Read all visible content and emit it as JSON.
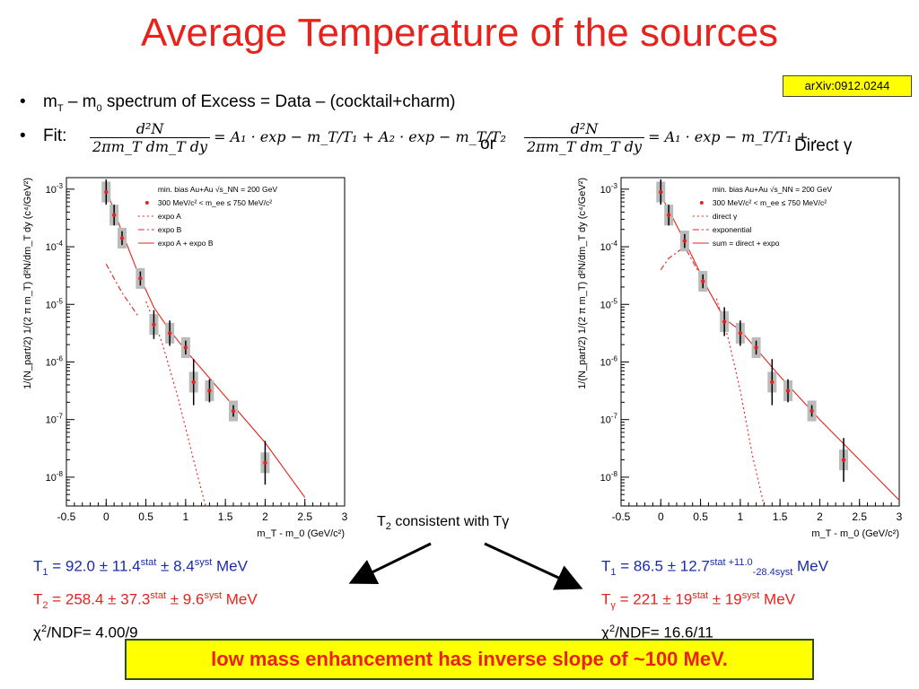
{
  "slide": {
    "title": "Average Temperature of the sources",
    "reference": "arXiv:0912.0244",
    "bullet1": {
      "marker": "•",
      "parts": [
        "m",
        "T",
        " – m",
        "0",
        " spectrum of Excess = Data – (cocktail+charm)"
      ]
    },
    "bullet2": {
      "marker": "•",
      "label": "Fit:"
    },
    "or_label": "or",
    "direct_label": "Direct γ",
    "consistency_note": {
      "parts": [
        "T",
        "2",
        " consistent with Tγ"
      ]
    },
    "conclusion": "low mass enhancement has inverse slope of ~100 MeV."
  },
  "equations": {
    "left": {
      "lhs_num": "d²N",
      "lhs_den": "2πm_T dm_T dy",
      "rhs": "= A₁ · exp − m_T/T₁ + A₂ · exp − m_T/T₂"
    },
    "right": {
      "lhs_num": "d²N",
      "lhs_den": "2πm_T dm_T dy",
      "rhs": "= A₁ · exp − m_T/T₁ + ."
    }
  },
  "results": {
    "left": {
      "t1": {
        "sym": "T",
        "sub": "1",
        "text": " = 92.0   ± 11.4",
        "sup1": "stat",
        "mid": " ± 8.4",
        "sup2": "syst",
        "unit": " MeV"
      },
      "t2": {
        "sym": "T",
        "sub": "2",
        "text": " = 258.4 ± 37.3",
        "sup1": "stat",
        "mid": " ± 9.6",
        "sup2": "syst",
        "unit": " MeV"
      },
      "chi2": {
        "sym": "χ",
        "sup": "2",
        "text": "/NDF= 4.00/9"
      }
    },
    "right": {
      "t1": {
        "sym": "T",
        "sub": "1",
        "text": " = 86.5 ± 12.7",
        "sup1": "stat",
        "sup_plus": " +11.0",
        "sub_minus": "-28.4syst",
        "unit": " MeV"
      },
      "tg": {
        "sym": "T",
        "sub": "γ",
        "text": " = 221 ± 19",
        "sup1": "stat",
        "mid": " ± 19",
        "sup2": "syst",
        "unit": " MeV"
      },
      "chi2": {
        "sym": "χ",
        "sup": "2",
        "text": "/NDF= 16.6/11"
      }
    }
  },
  "colors": {
    "title": "#e8211b",
    "highlight": "#ffff00",
    "blue_text": "#1a2ba8",
    "data_red": "#e8211b"
  },
  "chart_data": [
    {
      "type": "scatter",
      "ylabel": "1/(N_part/2) 1/(2 π m_T) d²N/dm_T dy (c⁴/GeV²)",
      "xlabel": "m_T - m_0 (GeV/c²)",
      "xlim": [
        -0.5,
        3
      ],
      "ylim_log10": [
        -8.5,
        -2.8
      ],
      "x_ticks": [
        "-0.5",
        "0",
        "0.5",
        "1",
        "1.5",
        "2",
        "2.5",
        "3"
      ],
      "y_ticks": [
        {
          "value": -3,
          "base": "10",
          "exp": "-3"
        },
        {
          "value": -4,
          "base": "10",
          "exp": "-4"
        },
        {
          "value": -5,
          "base": "10",
          "exp": "-5"
        },
        {
          "value": -6,
          "base": "10",
          "exp": "-6"
        },
        {
          "value": -7,
          "base": "10",
          "exp": "-7"
        },
        {
          "value": -8,
          "base": "10",
          "exp": "-8"
        }
      ],
      "legend": [
        {
          "label": "min. bias Au+Au √s_NN = 200 GeV",
          "style": "none"
        },
        {
          "label": "300 MeV/c² < m_ee ≤ 750 MeV/c²",
          "style": "dot"
        },
        {
          "label": "expo A",
          "style": "dotted"
        },
        {
          "label": "expo B",
          "style": "dashdot"
        },
        {
          "label": "expo A + expo B",
          "style": "solid"
        }
      ],
      "points": [
        {
          "x": 0.0,
          "log10y": -3.05,
          "err": 0.22
        },
        {
          "x": 0.1,
          "log10y": -3.45,
          "err": 0.18
        },
        {
          "x": 0.2,
          "log10y": -3.85,
          "err": 0.12
        },
        {
          "x": 0.43,
          "log10y": -4.55,
          "err": 0.12
        },
        {
          "x": 0.6,
          "log10y": -5.35,
          "err": 0.25
        },
        {
          "x": 0.8,
          "log10y": -5.5,
          "err": 0.22
        },
        {
          "x": 1.0,
          "log10y": -5.75,
          "err": 0.12
        },
        {
          "x": 1.1,
          "log10y": -6.35,
          "err": 0.4
        },
        {
          "x": 1.3,
          "log10y": -6.5,
          "err": 0.2
        },
        {
          "x": 1.6,
          "log10y": -6.85,
          "err": 0.1
        },
        {
          "x": 2.0,
          "log10y": -7.75,
          "err": 0.38
        }
      ],
      "curves": {
        "sum": [
          [
            0,
            -3.0
          ],
          [
            0.2,
            -3.75
          ],
          [
            0.4,
            -4.45
          ],
          [
            0.6,
            -5.05
          ],
          [
            0.8,
            -5.45
          ],
          [
            1.0,
            -5.8
          ],
          [
            1.5,
            -6.6
          ],
          [
            2.0,
            -7.4
          ],
          [
            2.5,
            -8.35
          ]
        ],
        "expoA": [
          [
            0.5,
            -4.95
          ],
          [
            0.7,
            -5.65
          ],
          [
            0.9,
            -6.6
          ],
          [
            1.1,
            -7.7
          ],
          [
            1.25,
            -8.5
          ]
        ],
        "expoB": [
          [
            0.0,
            -4.3
          ],
          [
            0.2,
            -4.8
          ],
          [
            0.4,
            -5.2
          ]
        ]
      }
    },
    {
      "type": "scatter",
      "ylabel": "1/(N_part/2) 1/(2 π m_T) d²N/dm_T dy (c⁴/GeV²)",
      "xlabel": "m_T - m_0 (GeV/c²)",
      "xlim": [
        -0.5,
        3
      ],
      "ylim_log10": [
        -8.5,
        -2.8
      ],
      "x_ticks": [
        "-0.5",
        "0",
        "0.5",
        "1",
        "1.5",
        "2",
        "2.5",
        "3"
      ],
      "y_ticks": [
        {
          "value": -3,
          "base": "10",
          "exp": "-3"
        },
        {
          "value": -4,
          "base": "10",
          "exp": "-4"
        },
        {
          "value": -5,
          "base": "10",
          "exp": "-5"
        },
        {
          "value": -6,
          "base": "10",
          "exp": "-6"
        },
        {
          "value": -7,
          "base": "10",
          "exp": "-7"
        },
        {
          "value": -8,
          "base": "10",
          "exp": "-8"
        }
      ],
      "legend": [
        {
          "label": "min. bias Au+Au √s_NN = 200 GeV",
          "style": "none"
        },
        {
          "label": "300 MeV/c² < m_ee ≤ 750 MeV/c²",
          "style": "dot"
        },
        {
          "label": "direct γ",
          "style": "dotted"
        },
        {
          "label": "exponential",
          "style": "dashdot"
        },
        {
          "label": "sum = direct + expo",
          "style": "solid"
        }
      ],
      "points": [
        {
          "x": 0.0,
          "log10y": -3.05,
          "err": 0.22
        },
        {
          "x": 0.1,
          "log10y": -3.45,
          "err": 0.18
        },
        {
          "x": 0.3,
          "log10y": -3.9,
          "err": 0.12
        },
        {
          "x": 0.53,
          "log10y": -4.6,
          "err": 0.12
        },
        {
          "x": 0.8,
          "log10y": -5.3,
          "err": 0.25
        },
        {
          "x": 1.0,
          "log10y": -5.5,
          "err": 0.22
        },
        {
          "x": 1.2,
          "log10y": -5.75,
          "err": 0.12
        },
        {
          "x": 1.4,
          "log10y": -6.35,
          "err": 0.4
        },
        {
          "x": 1.6,
          "log10y": -6.5,
          "err": 0.2
        },
        {
          "x": 1.9,
          "log10y": -6.85,
          "err": 0.1
        },
        {
          "x": 2.3,
          "log10y": -7.7,
          "err": 0.38
        }
      ],
      "curves": {
        "sum": [
          [
            0.0,
            -3.1
          ],
          [
            0.3,
            -3.9
          ],
          [
            0.6,
            -4.75
          ],
          [
            0.8,
            -5.25
          ],
          [
            1.0,
            -5.45
          ],
          [
            1.5,
            -6.25
          ],
          [
            2.0,
            -7.0
          ],
          [
            2.5,
            -7.7
          ],
          [
            3.0,
            -8.4
          ]
        ],
        "expo": [
          [
            0.7,
            -4.9
          ],
          [
            0.85,
            -5.6
          ],
          [
            1.0,
            -6.5
          ],
          [
            1.15,
            -7.6
          ],
          [
            1.3,
            -8.5
          ]
        ],
        "direct": [
          [
            0.0,
            -4.4
          ],
          [
            0.1,
            -4.2
          ],
          [
            0.3,
            -4.0
          ],
          [
            0.5,
            -4.5
          ]
        ]
      }
    }
  ]
}
